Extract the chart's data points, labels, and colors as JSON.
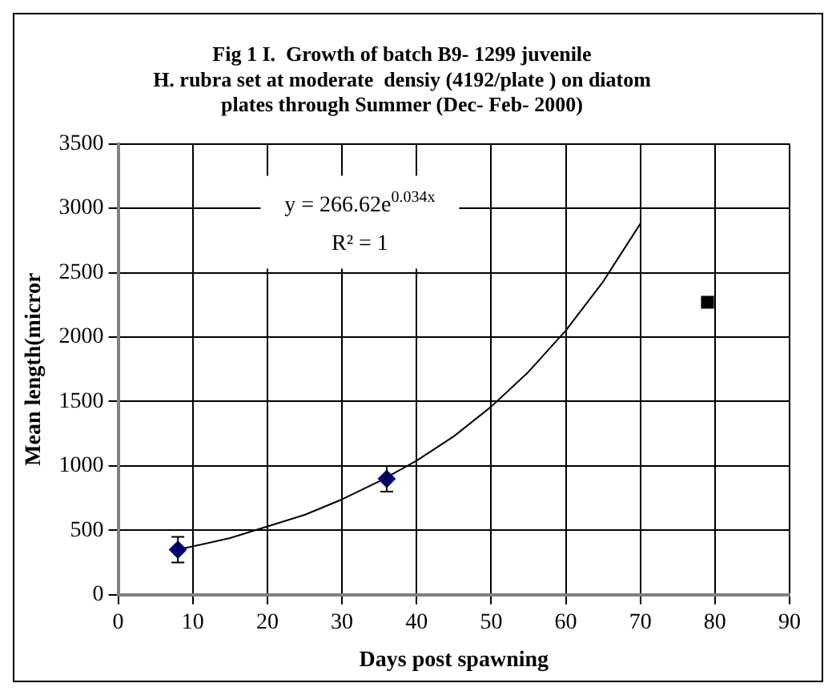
{
  "chart_data": {
    "type": "scatter",
    "title": "Fig 1 I.  Growth of batch B9- 1299 juvenile\nH. rubra set at moderate  densiy (4192/plate ) on diatom\nplates through Summer (Dec- Feb- 2000)",
    "xlabel": "Days post spawning",
    "ylabel": "Mean length(micror",
    "xlim": [
      0,
      90
    ],
    "xticks": [
      0,
      10,
      20,
      30,
      40,
      50,
      60,
      70,
      80,
      90
    ],
    "ylim": [
      0,
      3500
    ],
    "yticks": [
      0,
      500,
      1000,
      1500,
      2000,
      2500,
      3000,
      3500
    ],
    "grid": true,
    "legend": false,
    "series": [
      {
        "marker": "diamond",
        "color": "#000080",
        "x": [
          8,
          36
        ],
        "values": [
          350,
          900
        ],
        "errors": [
          100,
          100
        ]
      },
      {
        "marker": "square",
        "color": "#000000",
        "x": [
          79
        ],
        "values": [
          2270
        ]
      },
      {
        "type": "line",
        "marker": "none",
        "color": "#000000",
        "x": [
          8,
          15,
          20,
          25,
          30,
          35,
          40,
          45,
          50,
          55,
          60,
          65,
          70
        ],
        "values": [
          350,
          440,
          530,
          620,
          740,
          880,
          1040,
          1230,
          1460,
          1730,
          2050,
          2430,
          2880
        ]
      }
    ],
    "annotations": [
      "y = 266.62e$^{0.034x}$",
      "R² = 1"
    ]
  }
}
